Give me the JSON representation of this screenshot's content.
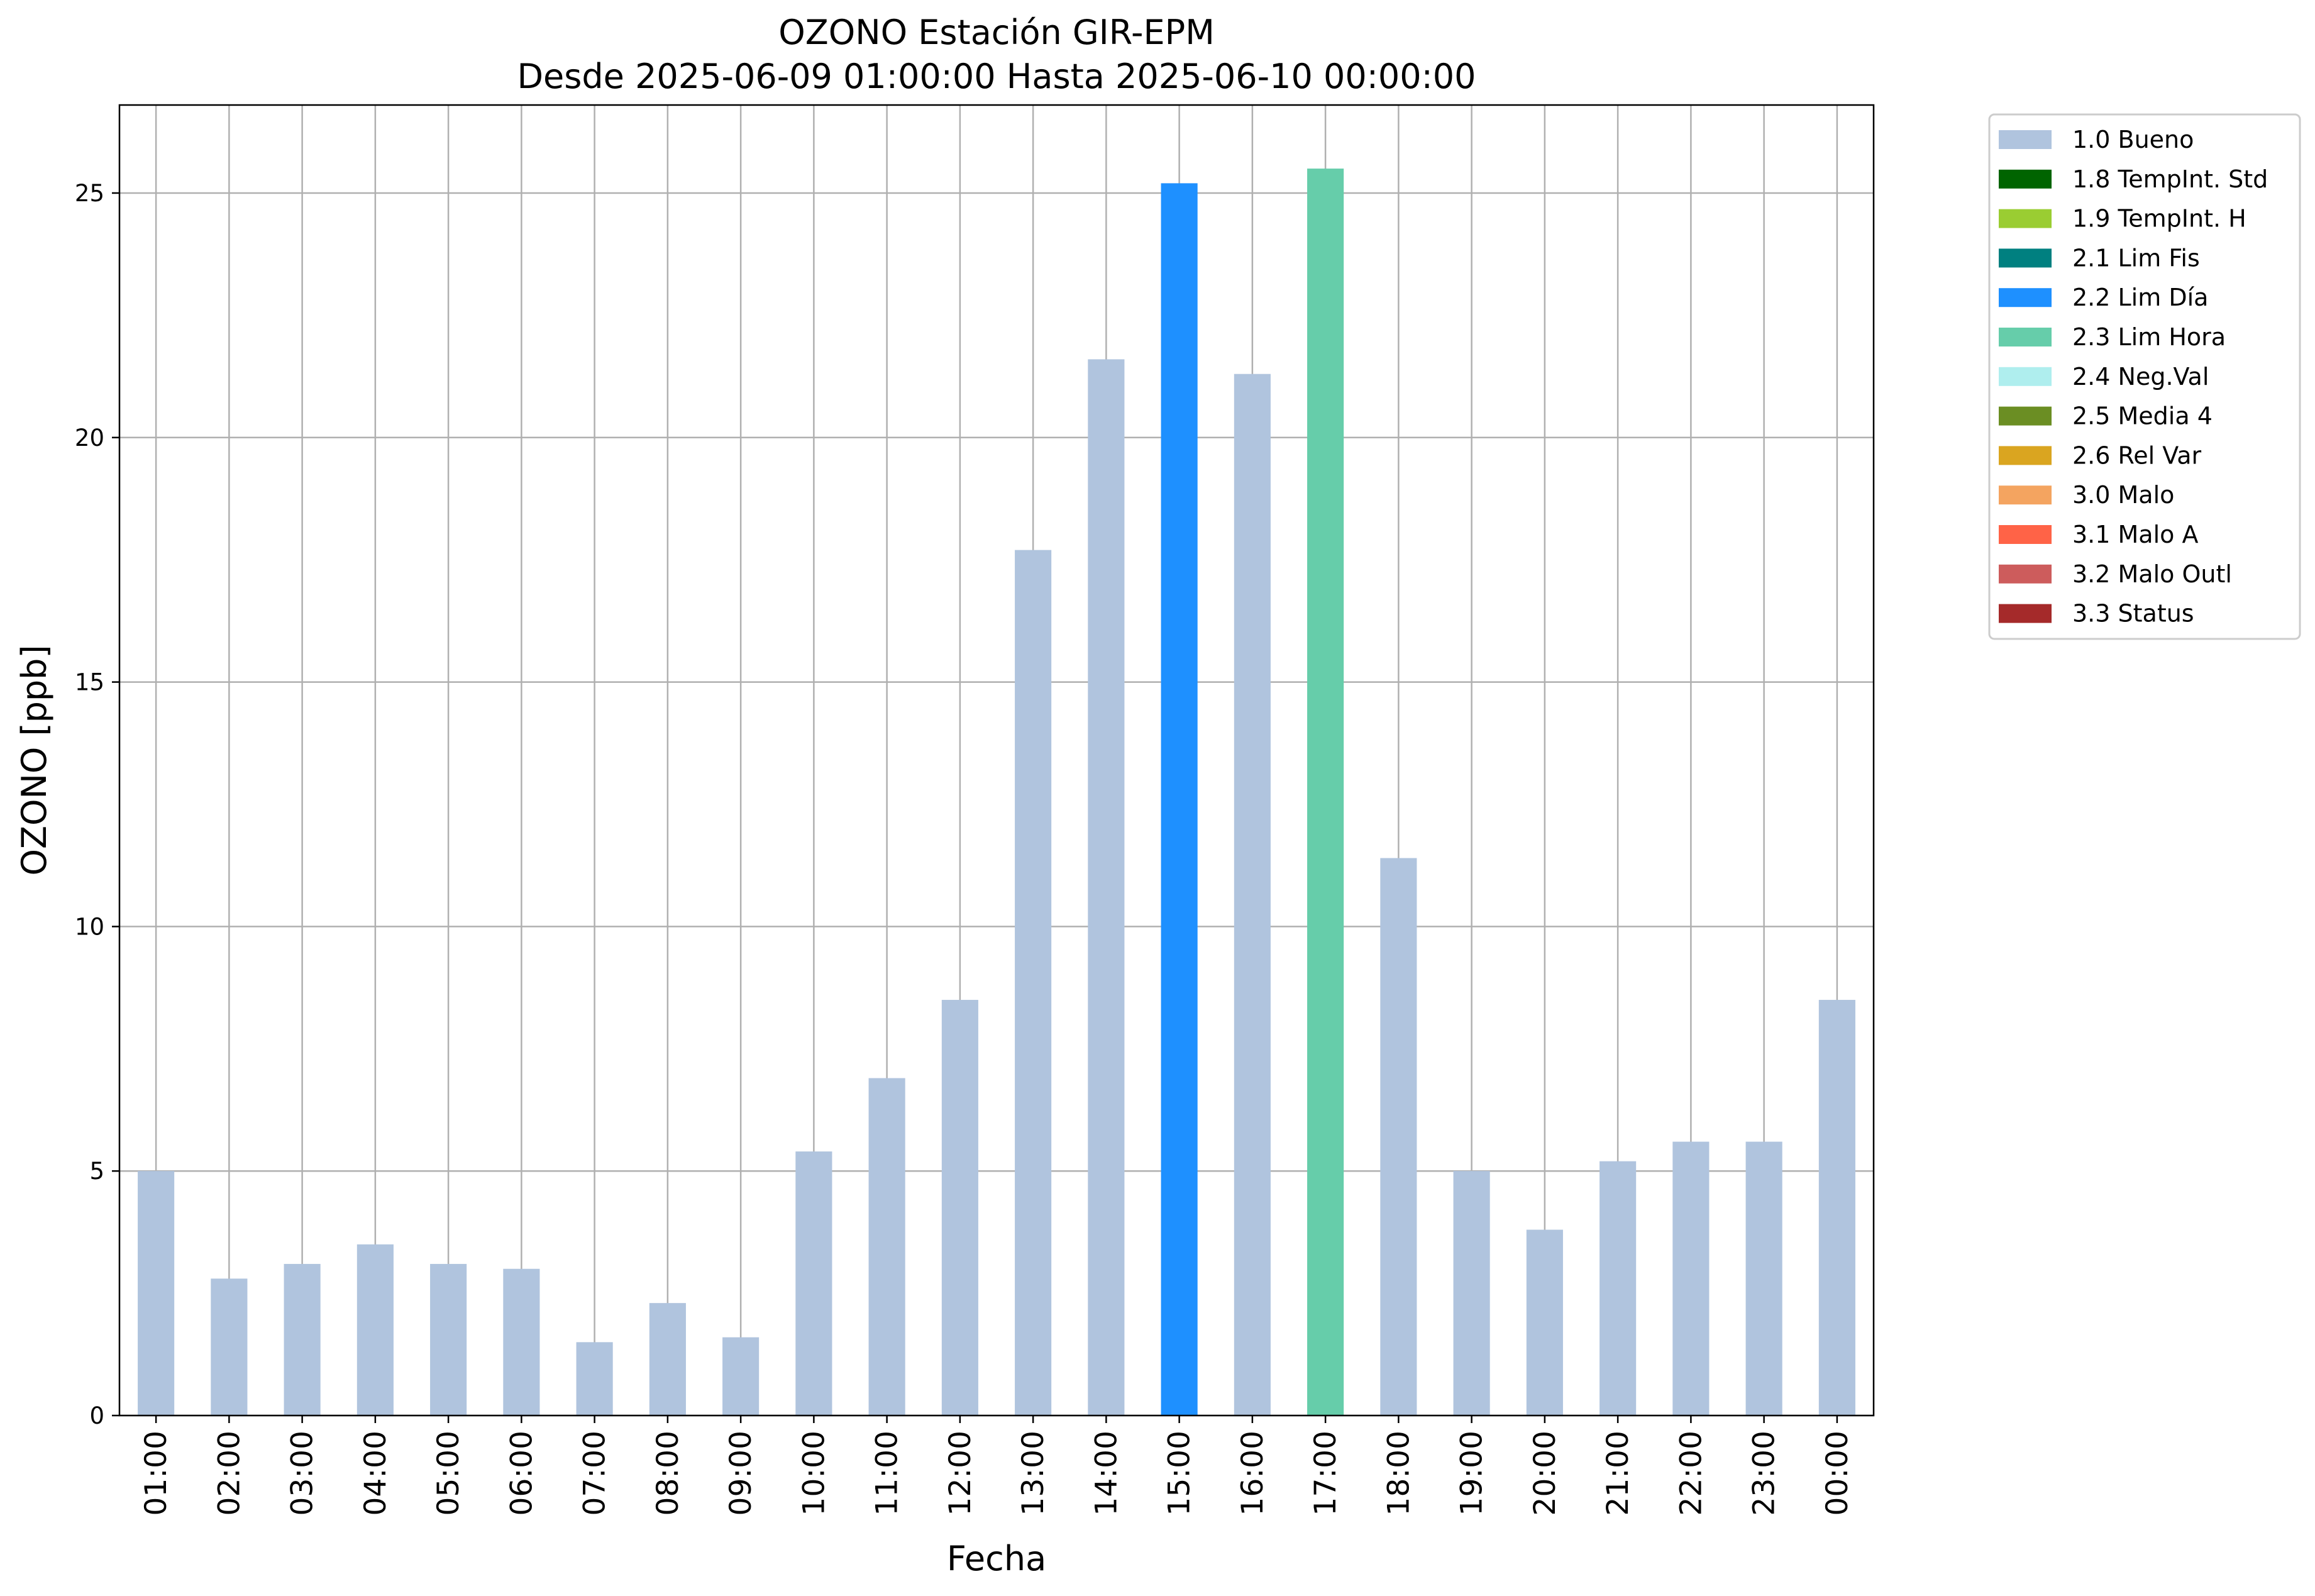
{
  "chart_data": {
    "type": "bar",
    "title": "OZONO Estación GIR-EPM",
    "subtitle": "Desde 2025-06-09 01:00:00 Hasta 2025-06-10 00:00:00",
    "xlabel": "Fecha",
    "ylabel": "OZONO [ppb]",
    "ylim": [
      0,
      26.8
    ],
    "yticks": [
      0,
      5,
      10,
      15,
      20,
      25
    ],
    "grid": true,
    "legend_position": "outside-right-top",
    "categories": [
      "01:00",
      "02:00",
      "03:00",
      "04:00",
      "05:00",
      "06:00",
      "07:00",
      "08:00",
      "09:00",
      "10:00",
      "11:00",
      "12:00",
      "13:00",
      "14:00",
      "15:00",
      "16:00",
      "17:00",
      "18:00",
      "19:00",
      "20:00",
      "21:00",
      "22:00",
      "23:00",
      "00:00"
    ],
    "values": [
      5.0,
      2.8,
      3.1,
      3.5,
      3.1,
      3.0,
      1.5,
      2.3,
      1.6,
      5.4,
      6.9,
      8.5,
      17.7,
      21.6,
      25.2,
      21.3,
      25.5,
      11.4,
      5.0,
      3.8,
      5.2,
      5.6,
      5.6,
      8.5
    ],
    "flags": [
      "1.0 Bueno",
      "1.0 Bueno",
      "1.0 Bueno",
      "1.0 Bueno",
      "1.0 Bueno",
      "1.0 Bueno",
      "1.0 Bueno",
      "1.0 Bueno",
      "1.0 Bueno",
      "1.0 Bueno",
      "1.0 Bueno",
      "1.0 Bueno",
      "1.0 Bueno",
      "1.0 Bueno",
      "2.2 Lim Día",
      "1.0 Bueno",
      "2.3 Lim Hora",
      "1.0 Bueno",
      "1.0 Bueno",
      "1.0 Bueno",
      "1.0 Bueno",
      "1.0 Bueno",
      "1.0 Bueno",
      "1.0 Bueno"
    ],
    "legend": [
      {
        "label": "1.0 Bueno",
        "color": "#b0c4de"
      },
      {
        "label": "1.8 TempInt. Std",
        "color": "#006400"
      },
      {
        "label": "1.9 TempInt. H",
        "color": "#9acd32"
      },
      {
        "label": "2.1 Lim Fis",
        "color": "#008080"
      },
      {
        "label": "2.2 Lim Día",
        "color": "#1e90ff"
      },
      {
        "label": "2.3 Lim Hora",
        "color": "#66cdaa"
      },
      {
        "label": "2.4 Neg.Val",
        "color": "#afeeee"
      },
      {
        "label": "2.5 Media 4",
        "color": "#6b8e23"
      },
      {
        "label": "2.6 Rel Var",
        "color": "#daa520"
      },
      {
        "label": "3.0 Malo",
        "color": "#f4a460"
      },
      {
        "label": "3.1 Malo A",
        "color": "#ff6347"
      },
      {
        "label": "3.2 Malo Outl",
        "color": "#cd5c5c"
      },
      {
        "label": "3.3 Status",
        "color": "#a52a2a"
      }
    ]
  }
}
